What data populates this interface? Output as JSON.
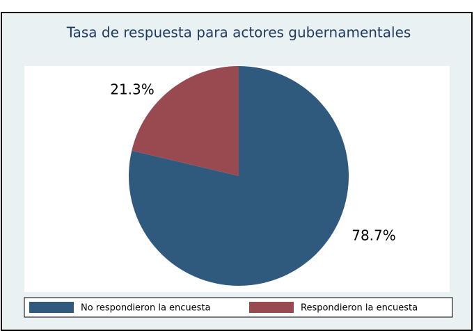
{
  "chart_data": {
    "type": "pie",
    "title": "Tasa de respuesta para actores gubernamentales",
    "categories": [
      "No respondieron la encuesta",
      "Respondieron la encuesta"
    ],
    "values": [
      78.7,
      21.3
    ],
    "value_labels": [
      "78.7%",
      "21.3%"
    ],
    "colors": [
      "#2f5a7e",
      "#984a50"
    ],
    "legend": "bottom"
  }
}
